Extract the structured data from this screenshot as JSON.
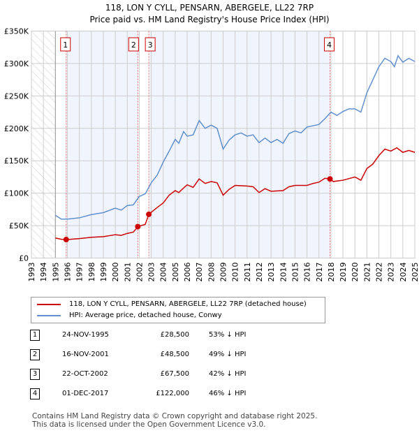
{
  "chart_data": {
    "type": "line",
    "title": "118, LON Y CYLL, PENSARN, ABERGELE, LL22 7RP",
    "subtitle": "Price paid vs. HM Land Registry's House Price Index (HPI)",
    "xlim": [
      1993,
      2025
    ],
    "ylim": [
      0,
      350000
    ],
    "y_ticks": [
      {
        "v": 0,
        "label": "£0"
      },
      {
        "v": 50000,
        "label": "£50K"
      },
      {
        "v": 100000,
        "label": "£100K"
      },
      {
        "v": 150000,
        "label": "£150K"
      },
      {
        "v": 200000,
        "label": "£200K"
      },
      {
        "v": 250000,
        "label": "£250K"
      },
      {
        "v": 300000,
        "label": "£300K"
      },
      {
        "v": 350000,
        "label": "£350K"
      }
    ],
    "x_ticks": [
      "1993",
      "1994",
      "1995",
      "1996",
      "1997",
      "1998",
      "1999",
      "2000",
      "2001",
      "2002",
      "2003",
      "2004",
      "2005",
      "2006",
      "2007",
      "2008",
      "2009",
      "2010",
      "2011",
      "2012",
      "2013",
      "2014",
      "2015",
      "2016",
      "2017",
      "2018",
      "2019",
      "2020",
      "2021",
      "2022",
      "2023",
      "2024",
      "2025"
    ],
    "series": [
      {
        "name": "118, LON Y CYLL, PENSARN, ABERGELE, LL22 7RP (detached house)",
        "color": "#cc0000",
        "x": [
          1995,
          1995.5,
          1996,
          1997,
          1998,
          1999,
          2000,
          2000.5,
          2001,
          2001.5,
          2001.9,
          2002.5,
          2002.8,
          2003.5,
          2004,
          2004.5,
          2005,
          2005.3,
          2005.7,
          2006,
          2006.5,
          2007,
          2007.5,
          2008,
          2008.5,
          2009,
          2009.5,
          2010,
          2011,
          2011.5,
          2012,
          2012.5,
          2013,
          2014,
          2014.5,
          2015,
          2016,
          2016.5,
          2017,
          2017.5,
          2017.9,
          2018.2,
          2019,
          2020,
          2020.5,
          2021,
          2021.5,
          2022,
          2022.5,
          2023,
          2023.5,
          2024,
          2024.5,
          2025
        ],
        "y": [
          31000,
          29000,
          28500,
          30000,
          32000,
          33000,
          36000,
          35000,
          38000,
          40000,
          48500,
          52000,
          67500,
          78000,
          85000,
          97000,
          104000,
          101000,
          108000,
          113000,
          109000,
          122000,
          115000,
          118000,
          116000,
          97000,
          106000,
          112000,
          111000,
          110000,
          101000,
          107000,
          103000,
          104000,
          110000,
          112000,
          112000,
          115000,
          117000,
          123000,
          122000,
          118000,
          120000,
          125000,
          120000,
          138000,
          145000,
          158000,
          168000,
          165000,
          170000,
          163000,
          166000,
          163000
        ]
      },
      {
        "name": "HPI: Average price, detached house, Conwy",
        "color": "#6090d0",
        "x": [
          1995,
          1995.5,
          1996,
          1997,
          1998,
          1999,
          2000,
          2000.5,
          2001,
          2001.5,
          2002,
          2002.5,
          2003,
          2003.5,
          2004,
          2004.5,
          2005,
          2005.3,
          2005.7,
          2006,
          2006.5,
          2007,
          2007.5,
          2008,
          2008.5,
          2009,
          2009.5,
          2010,
          2010.5,
          2011,
          2011.5,
          2012,
          2012.5,
          2013,
          2013.5,
          2014,
          2014.5,
          2015,
          2015.5,
          2016,
          2016.5,
          2017,
          2017.5,
          2018,
          2018.5,
          2019,
          2019.5,
          2020,
          2020.5,
          2021,
          2021.5,
          2022,
          2022.5,
          2023,
          2023.3,
          2023.6,
          2024,
          2024.5,
          2025
        ],
        "y": [
          66000,
          60000,
          60000,
          62000,
          67000,
          70000,
          77000,
          74000,
          81000,
          82000,
          95000,
          99000,
          116000,
          128000,
          148000,
          165000,
          183000,
          177000,
          195000,
          188000,
          190000,
          212000,
          200000,
          205000,
          200000,
          168000,
          182000,
          190000,
          193000,
          188000,
          190000,
          178000,
          185000,
          178000,
          183000,
          177000,
          192000,
          196000,
          193000,
          202000,
          204000,
          206000,
          215000,
          225000,
          220000,
          226000,
          230000,
          230000,
          225000,
          255000,
          275000,
          295000,
          308000,
          303000,
          295000,
          312000,
          302000,
          308000,
          303000
        ]
      }
    ],
    "sales": [
      {
        "n": "1",
        "x": 1995.9,
        "y": 28500
      },
      {
        "n": "2",
        "x": 2001.88,
        "y": 48500
      },
      {
        "n": "3",
        "x": 2002.8,
        "y": 67500
      },
      {
        "n": "4",
        "x": 2017.92,
        "y": 122000
      }
    ],
    "hatched_before": 1995,
    "legend_placement": "bottom"
  },
  "legend": [
    "118, LON Y CYLL, PENSARN, ABERGELE, LL22 7RP (detached house)",
    "HPI: Average price, detached house, Conwy"
  ],
  "transactions": [
    {
      "n": "1",
      "date": "24-NOV-1995",
      "price": "£28,500",
      "hpi": "53% ↓ HPI"
    },
    {
      "n": "2",
      "date": "16-NOV-2001",
      "price": "£48,500",
      "hpi": "49% ↓ HPI"
    },
    {
      "n": "3",
      "date": "22-OCT-2002",
      "price": "£67,500",
      "hpi": "42% ↓ HPI"
    },
    {
      "n": "4",
      "date": "01-DEC-2017",
      "price": "£122,000",
      "hpi": "46% ↓ HPI"
    }
  ],
  "footer": [
    "Contains HM Land Registry data © Crown copyright and database right 2025.",
    "This data is licensed under the Open Government Licence v3.0."
  ]
}
